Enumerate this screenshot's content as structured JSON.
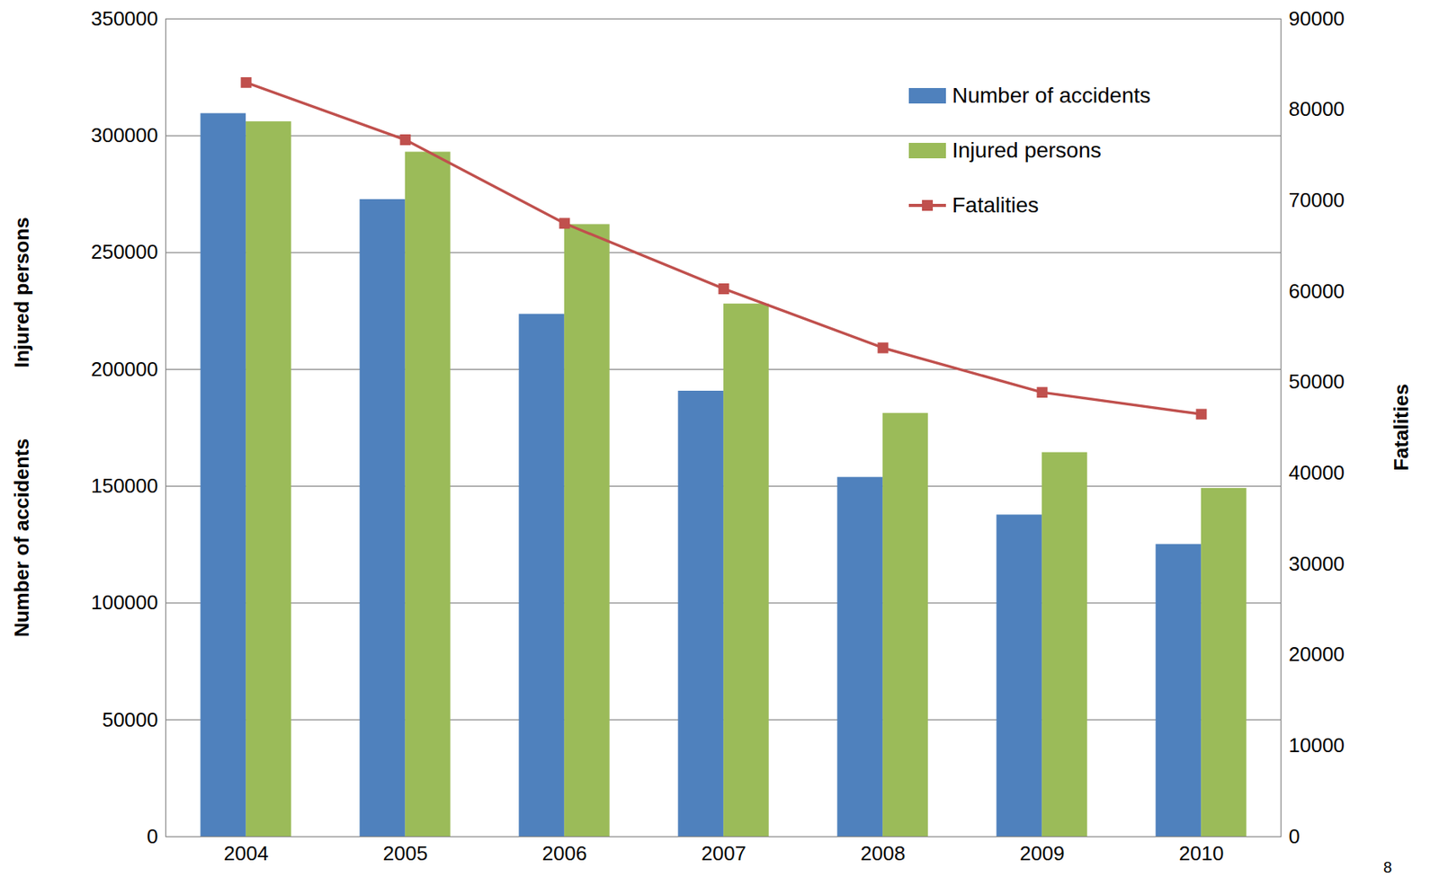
{
  "chart_data": {
    "type": "bar",
    "categories": [
      "2004",
      "2005",
      "2006",
      "2007",
      "2008",
      "2009",
      "2010"
    ],
    "series": [
      {
        "name": "Number of accidents",
        "color": "#4f81bd",
        "type": "bar",
        "values": [
          309500,
          272700,
          223600,
          190700,
          153800,
          137700,
          125100
        ]
      },
      {
        "name": "Injured persons",
        "color": "#9bbb59",
        "type": "bar",
        "values": [
          306000,
          293000,
          262000,
          228000,
          181200,
          164400,
          149100
        ]
      },
      {
        "name": "Fatalities",
        "color": "#c0504d",
        "type": "line",
        "marker": "square",
        "axis": "y2",
        "values": [
          83000,
          76700,
          67500,
          60300,
          53800,
          48900,
          46500
        ]
      }
    ],
    "ylabel": [
      "Number of accidents",
      "Injured persons"
    ],
    "y2label": "Fatalities",
    "ylim": [
      0,
      350000
    ],
    "yticks": [
      0,
      50000,
      100000,
      150000,
      200000,
      250000,
      300000,
      350000
    ],
    "y2lim": [
      0,
      90000
    ],
    "y2ticks": [
      0,
      10000,
      20000,
      30000,
      40000,
      50000,
      60000,
      70000,
      80000,
      90000
    ],
    "grid": true,
    "legend": "upper right",
    "annotations": [
      "8"
    ]
  }
}
